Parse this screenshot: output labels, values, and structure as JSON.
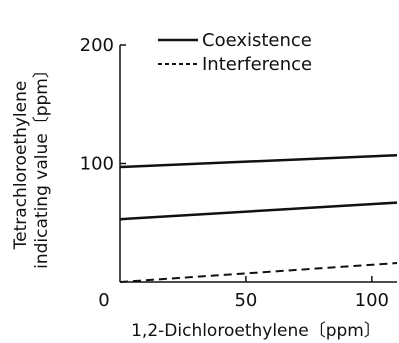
{
  "chart_data": {
    "type": "line",
    "xlabel": "1,2-Dichloroethylene〔ppm〕",
    "ylabel_lines": [
      "Tetrachloroethylene",
      "indicating value〔ppm〕"
    ],
    "xlim": [
      0,
      110
    ],
    "ylim": [
      0,
      200
    ],
    "x_ticks": [
      {
        "value": 0,
        "label": "0"
      },
      {
        "value": 50,
        "label": "50"
      },
      {
        "value": 100,
        "label": "100"
      }
    ],
    "y_ticks": [
      {
        "value": 100,
        "label": "100"
      },
      {
        "value": 200,
        "label": "200"
      }
    ],
    "grid": false,
    "legend_position": "top-center",
    "legend": [
      {
        "label": "Coexistence",
        "style": "solid"
      },
      {
        "label": "Interference",
        "style": "dashed"
      }
    ],
    "series": [
      {
        "style": "solid",
        "x": [
          0,
          110
        ],
        "y": [
          97,
          107
        ]
      },
      {
        "style": "solid",
        "x": [
          0,
          110
        ],
        "y": [
          53,
          67
        ]
      },
      {
        "style": "dashed",
        "x": [
          0,
          110
        ],
        "y": [
          0,
          16
        ]
      }
    ]
  }
}
